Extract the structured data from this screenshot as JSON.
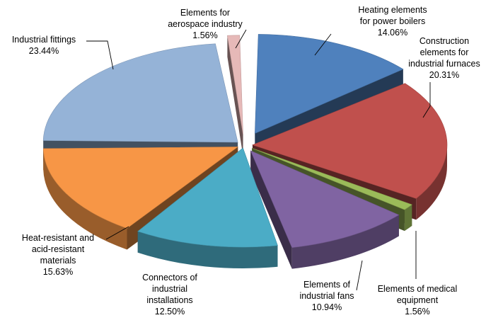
{
  "chart_data": {
    "type": "pie",
    "style": "3d exploded",
    "title": "",
    "legend": "none",
    "slices": [
      {
        "label": "Heating elements for power boilers",
        "value": 14.06,
        "value_label": "14.06%",
        "color": "#4F81BD"
      },
      {
        "label": "Construction elements for industrial furnaces",
        "value": 20.31,
        "value_label": "20.31%",
        "color": "#C0504D"
      },
      {
        "label": "Elements of medical equipment",
        "value": 1.56,
        "value_label": "1.56%",
        "color": "#9BBB59"
      },
      {
        "label": "Elements of industrial fans",
        "value": 10.94,
        "value_label": "10.94%",
        "color": "#8064A2"
      },
      {
        "label": "Connectors of industrial installations",
        "value": 12.5,
        "value_label": "12.50%",
        "color": "#4BACC6"
      },
      {
        "label": "Heat-resistant and acid-resistant materials",
        "value": 15.63,
        "value_label": "15.63%",
        "color": "#F79646"
      },
      {
        "label": "Industrial fittings",
        "value": 23.44,
        "value_label": "23.44%",
        "color": "#95B3D7"
      },
      {
        "label": "Elements for aerospace industry",
        "value": 1.56,
        "value_label": "1.56%",
        "color": "#E6B9B8"
      }
    ],
    "label_lines": [
      [
        "Heating elements",
        "for power boilers",
        "14.06%"
      ],
      [
        "Construction",
        "elements for",
        "industrial furnaces",
        "20.31%"
      ],
      [
        "Elements of medical",
        "equipment",
        "1.56%"
      ],
      [
        "Elements of",
        "industrial fans",
        "10.94%"
      ],
      [
        "Connectors of",
        "industrial",
        "installations",
        "12.50%"
      ],
      [
        "Heat-resistant and",
        "acid-resistant",
        "materials",
        "15.63%"
      ],
      [
        "Industrial fittings",
        "23.44%"
      ],
      [
        "Elements for",
        "aerospace industry",
        "1.56%"
      ]
    ]
  }
}
